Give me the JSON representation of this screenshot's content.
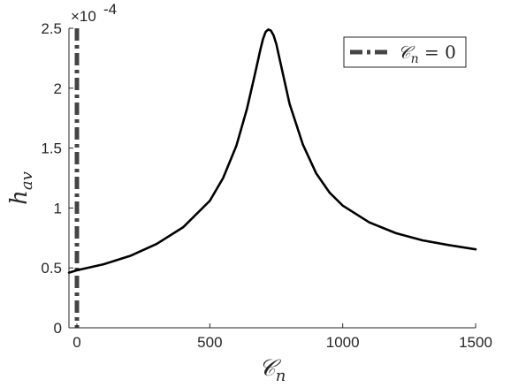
{
  "chart_data": {
    "type": "line",
    "title": "",
    "xlabel": "𝒞",
    "xlabel_sub": "n",
    "ylabel": "h",
    "ylabel_sub": "av",
    "y_exponent_label": "×10",
    "y_exponent_power": "-4",
    "xlim": [
      -30,
      1500
    ],
    "ylim": [
      0,
      2.5
    ],
    "xticks": [
      0,
      500,
      1000,
      1500
    ],
    "yticks": [
      0,
      0.5,
      1,
      1.5,
      2,
      2.5
    ],
    "xtick_labels": [
      "0",
      "500",
      "1000",
      "1500"
    ],
    "ytick_labels": [
      "0",
      "0.5",
      "1",
      "1.5",
      "2",
      "2.5"
    ],
    "grid": false,
    "legend_position": "top-right",
    "series": [
      {
        "name": "",
        "color": "#000000",
        "style": "solid",
        "x": [
          -30,
          0,
          100,
          200,
          300,
          400,
          500,
          550,
          600,
          640,
          670,
          690,
          700,
          710,
          720,
          730,
          740,
          750,
          770,
          800,
          850,
          900,
          950,
          1000,
          1100,
          1200,
          1300,
          1400,
          1500
        ],
        "y": [
          0.46,
          0.48,
          0.53,
          0.6,
          0.7,
          0.84,
          1.06,
          1.25,
          1.52,
          1.83,
          2.12,
          2.32,
          2.41,
          2.47,
          2.49,
          2.48,
          2.44,
          2.37,
          2.17,
          1.87,
          1.53,
          1.29,
          1.13,
          1.02,
          0.88,
          0.79,
          0.73,
          0.69,
          0.655
        ]
      }
    ],
    "reference_lines": [
      {
        "orientation": "vertical",
        "x": 0,
        "color": "#444444",
        "style": "dash-dot",
        "legend_label": "𝒞",
        "legend_sub": "n",
        "legend_rhs": " = 0"
      }
    ]
  }
}
